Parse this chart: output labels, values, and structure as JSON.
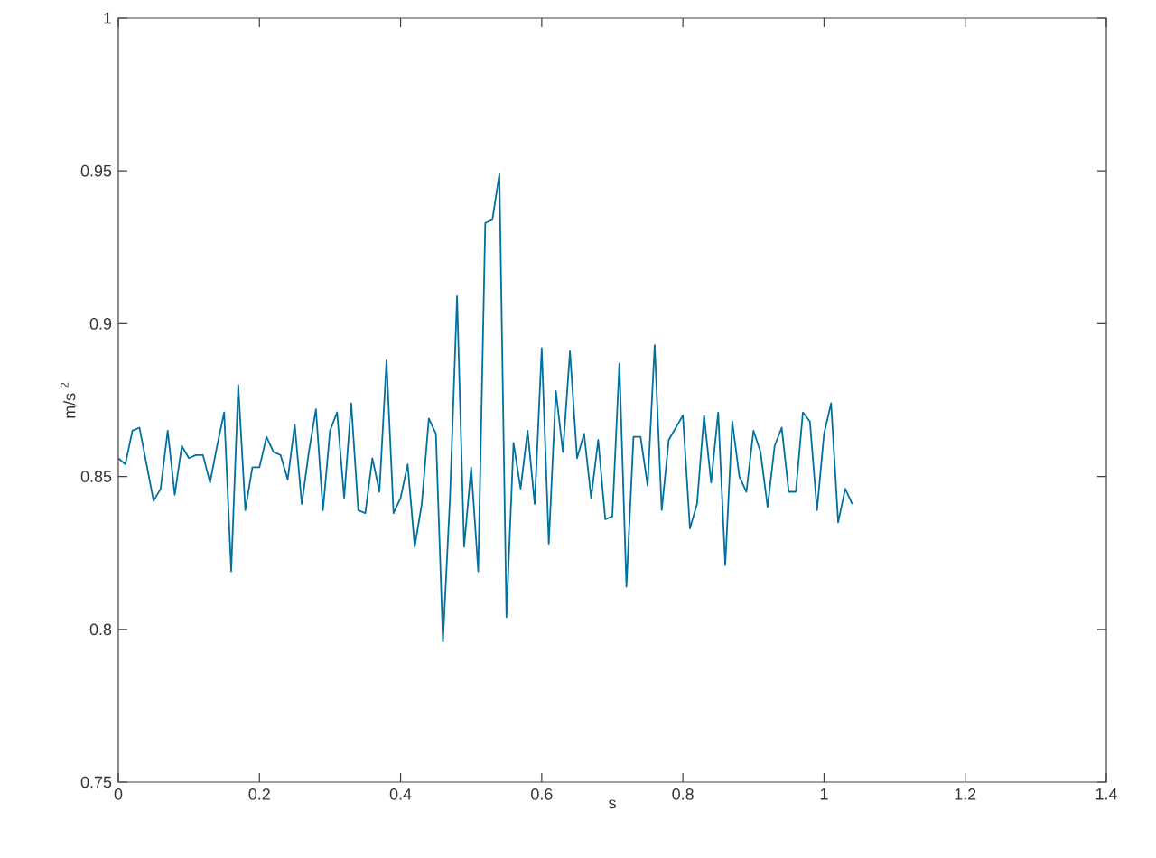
{
  "chart_data": {
    "type": "line",
    "xlabel": "s",
    "ylabel": "m/s $^{2}$",
    "xlim": [
      0,
      1.4
    ],
    "ylim": [
      0.75,
      1
    ],
    "xticks": [
      0,
      0.2,
      0.4,
      0.6,
      0.8,
      1,
      1.2,
      1.4
    ],
    "yticks": [
      0.75,
      0.8,
      0.85,
      0.9,
      0.95,
      1
    ],
    "grid": false,
    "marker": "none",
    "line_style": "solid",
    "series": [
      {
        "color": "#00709f",
        "x": [
          0,
          0.01,
          0.02,
          0.03,
          0.05,
          0.06,
          0.07,
          0.08,
          0.09,
          0.1,
          0.11,
          0.12,
          0.13,
          0.14,
          0.15,
          0.16,
          0.17,
          0.18,
          0.19,
          0.2,
          0.21,
          0.22,
          0.23,
          0.24,
          0.25,
          0.26,
          0.27,
          0.28,
          0.29,
          0.3,
          0.31,
          0.32,
          0.33,
          0.34,
          0.35,
          0.36,
          0.37,
          0.38,
          0.39,
          0.4,
          0.41,
          0.42,
          0.43,
          0.44,
          0.45,
          0.46,
          0.47,
          0.48,
          0.49,
          0.5,
          0.51,
          0.52,
          0.53,
          0.54,
          0.55,
          0.56,
          0.57,
          0.58,
          0.59,
          0.6,
          0.61,
          0.62,
          0.63,
          0.64,
          0.65,
          0.66,
          0.67,
          0.68,
          0.69,
          0.7,
          0.71,
          0.72,
          0.73,
          0.74,
          0.75,
          0.76,
          0.77,
          0.78,
          0.8,
          0.81,
          0.82,
          0.83,
          0.84,
          0.85,
          0.86,
          0.87,
          0.88,
          0.89,
          0.9,
          0.91,
          0.92,
          0.93,
          0.94,
          0.95,
          0.96,
          0.97,
          0.98,
          0.99,
          1,
          1.01,
          1.02,
          1.03,
          1.04
        ],
        "values": [
          0.856,
          0.854,
          0.865,
          0.866,
          0.842,
          0.846,
          0.865,
          0.844,
          0.86,
          0.856,
          0.857,
          0.857,
          0.848,
          0.86,
          0.871,
          0.819,
          0.88,
          0.839,
          0.853,
          0.853,
          0.863,
          0.858,
          0.857,
          0.849,
          0.867,
          0.841,
          0.858,
          0.872,
          0.839,
          0.865,
          0.871,
          0.843,
          0.874,
          0.839,
          0.838,
          0.856,
          0.845,
          0.888,
          0.838,
          0.843,
          0.854,
          0.827,
          0.841,
          0.869,
          0.864,
          0.796,
          0.843,
          0.909,
          0.827,
          0.853,
          0.819,
          0.933,
          0.934,
          0.949,
          0.804,
          0.861,
          0.846,
          0.865,
          0.841,
          0.892,
          0.828,
          0.878,
          0.858,
          0.891,
          0.856,
          0.864,
          0.843,
          0.862,
          0.836,
          0.837,
          0.887,
          0.814,
          0.863,
          0.863,
          0.847,
          0.893,
          0.839,
          0.862,
          0.87,
          0.833,
          0.841,
          0.87,
          0.848,
          0.871,
          0.821,
          0.868,
          0.85,
          0.845,
          0.865,
          0.858,
          0.84,
          0.86,
          0.866,
          0.845,
          0.845,
          0.871,
          0.868,
          0.839,
          0.864,
          0.874,
          0.835,
          0.846,
          0.841
        ]
      }
    ]
  }
}
